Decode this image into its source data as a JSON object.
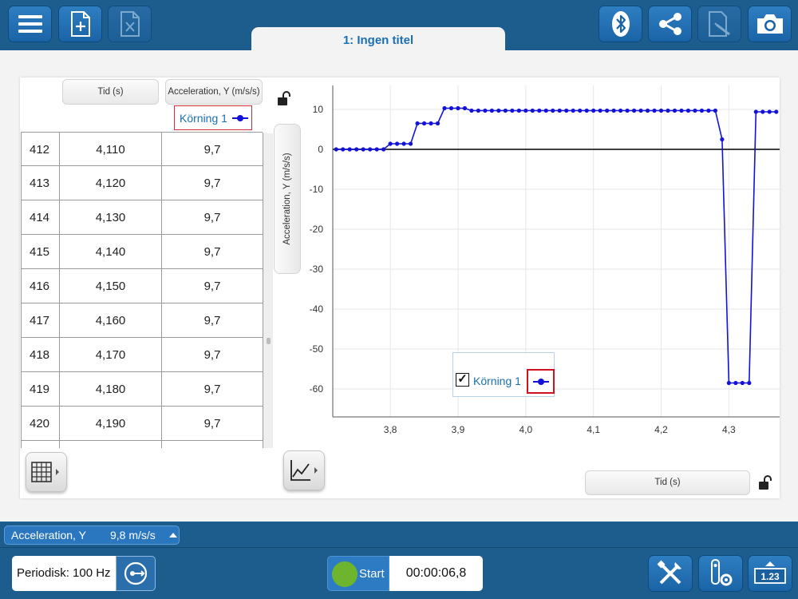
{
  "document": {
    "tab_title": "1: Ingen titel"
  },
  "toolbar": {
    "left": [
      "menu-icon",
      "new-document-icon",
      "delete-document-icon"
    ],
    "right": [
      "bluetooth-icon",
      "share-icon",
      "edit-document-icon",
      "camera-icon"
    ]
  },
  "table": {
    "col_time": "Tid (s)",
    "col_accel": "Acceleration, Y (m/s/s)",
    "series_label": "Körning 1",
    "rows": [
      [
        "412",
        "4,110",
        "9,7"
      ],
      [
        "413",
        "4,120",
        "9,7"
      ],
      [
        "414",
        "4,130",
        "9,7"
      ],
      [
        "415",
        "4,140",
        "9,7"
      ],
      [
        "416",
        "4,150",
        "9,7"
      ],
      [
        "417",
        "4,160",
        "9,7"
      ],
      [
        "418",
        "4,170",
        "9,7"
      ],
      [
        "419",
        "4,180",
        "9,7"
      ],
      [
        "420",
        "4,190",
        "9,7"
      ]
    ]
  },
  "graph": {
    "y_axis_button": "Acceleration, Y (m/s/s)",
    "x_axis_button": "Tid (s)",
    "legend_label": "Körning 1",
    "legend_checked": true
  },
  "chart_data": {
    "type": "line",
    "xlabel": "Tid (s)",
    "ylabel": "Acceleration, Y (m/s/s)",
    "xlim": [
      3.715,
      4.375
    ],
    "ylim": [
      -67,
      16
    ],
    "x_ticks": [
      "3,8",
      "3,9",
      "4,0",
      "4,1",
      "4,2",
      "4,3"
    ],
    "x_tick_values": [
      3.8,
      3.9,
      4.0,
      4.1,
      4.2,
      4.3
    ],
    "y_ticks": [
      10,
      0,
      -10,
      -20,
      -30,
      -40,
      -50,
      -60
    ],
    "zero_line": true,
    "series": [
      {
        "name": "Körning 1",
        "color": "#1212d8",
        "marker": "circle",
        "x": [
          3.72,
          3.73,
          3.74,
          3.75,
          3.76,
          3.77,
          3.78,
          3.79,
          3.8,
          3.81,
          3.82,
          3.83,
          3.84,
          3.85,
          3.86,
          3.87,
          3.88,
          3.89,
          3.9,
          3.91,
          3.92,
          3.93,
          3.94,
          3.95,
          3.96,
          3.97,
          3.98,
          3.99,
          4.0,
          4.01,
          4.02,
          4.03,
          4.04,
          4.05,
          4.06,
          4.07,
          4.08,
          4.09,
          4.1,
          4.11,
          4.12,
          4.13,
          4.14,
          4.15,
          4.16,
          4.17,
          4.18,
          4.19,
          4.2,
          4.21,
          4.22,
          4.23,
          4.24,
          4.25,
          4.26,
          4.27,
          4.28,
          4.29,
          4.3,
          4.31,
          4.32,
          4.33,
          4.34,
          4.35,
          4.36,
          4.37
        ],
        "y": [
          0,
          0,
          0,
          0,
          0,
          0,
          0,
          0,
          1.4,
          1.4,
          1.4,
          1.4,
          6.5,
          6.5,
          6.5,
          6.5,
          10.3,
          10.3,
          10.3,
          10.3,
          9.7,
          9.7,
          9.7,
          9.7,
          9.7,
          9.7,
          9.7,
          9.7,
          9.7,
          9.7,
          9.7,
          9.7,
          9.7,
          9.7,
          9.7,
          9.7,
          9.7,
          9.7,
          9.7,
          9.7,
          9.7,
          9.7,
          9.7,
          9.7,
          9.7,
          9.7,
          9.7,
          9.7,
          9.7,
          9.7,
          9.7,
          9.7,
          9.7,
          9.7,
          9.7,
          9.7,
          9.7,
          2.5,
          -58.5,
          -58.5,
          -58.5,
          -58.5,
          9.4,
          9.4,
          9.4,
          9.4
        ]
      }
    ]
  },
  "sensor": {
    "name": "Acceleration, Y",
    "value": "9,8  m/s/s"
  },
  "bottom": {
    "mode": "Periodisk: 100 Hz",
    "start_label": "Start",
    "timer": "00:00:06,8"
  }
}
